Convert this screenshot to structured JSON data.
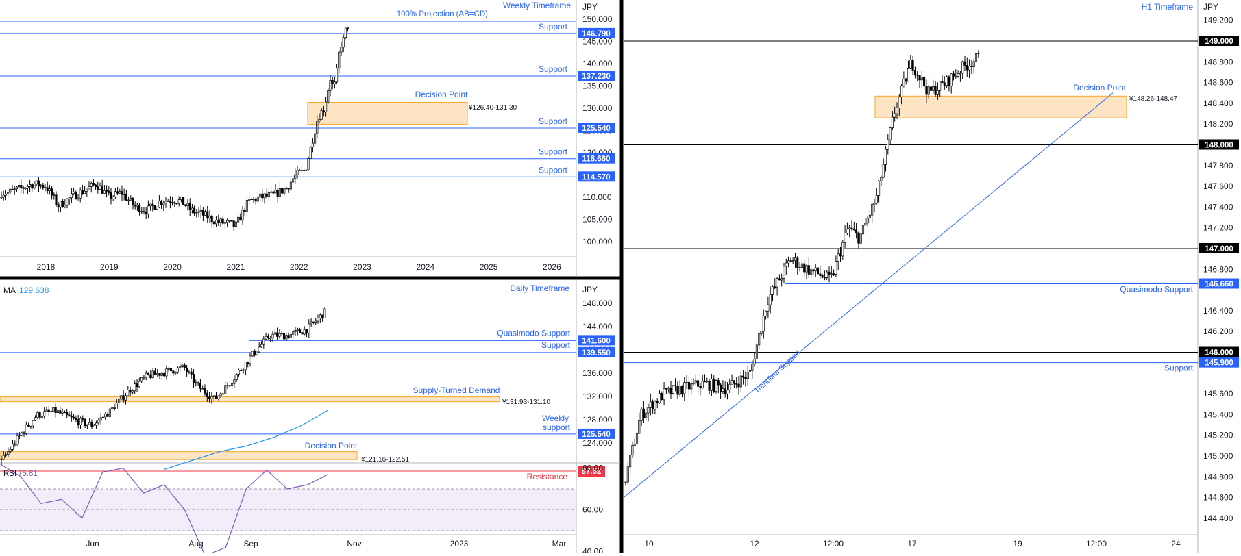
{
  "currency": "JPY",
  "weekly": {
    "timeframe_label": "Weekly Timeframe",
    "projection_label": "100% Projection (AB=CD)",
    "y_ticks": [
      "150.000",
      "145.000",
      "140.000",
      "135.000",
      "130.000",
      "125.000",
      "120.000",
      "115.000",
      "110.000",
      "105.000",
      "100.000"
    ],
    "x_ticks": [
      "2018",
      "2019",
      "2020",
      "2021",
      "2022",
      "2023",
      "2024",
      "2025",
      "2026"
    ],
    "levels": [
      {
        "label": "Support",
        "value": "146.790"
      },
      {
        "label": "Support",
        "value": "137.230"
      },
      {
        "label": "Support",
        "value": "125.540"
      },
      {
        "label": "Support",
        "value": "118.660"
      },
      {
        "label": "Support",
        "value": "114.570"
      }
    ],
    "zone": {
      "label": "Decision Point",
      "range": "¥126.40-131.30"
    }
  },
  "daily": {
    "timeframe_label": "Daily Timeframe",
    "ma_label": "MA",
    "ma_value": "129.638",
    "y_ticks": [
      "148.000",
      "144.000",
      "140.000",
      "136.000",
      "132.000",
      "128.000",
      "124.000"
    ],
    "x_ticks": [
      "Jun",
      "Aug",
      "Sep",
      "Nov",
      "2023",
      "Mar"
    ],
    "levels": [
      {
        "label": "Quasimodo Support",
        "value": "141.600"
      },
      {
        "label": "Support",
        "value": "139.550"
      },
      {
        "label_line1": "Weekly",
        "label_line2": "support",
        "value": "125.540"
      }
    ],
    "zones": [
      {
        "label": "Supply-Turned Demand",
        "range": "¥131.93-131.10"
      },
      {
        "label": "Decision Point",
        "range": "¥121.16-122.51"
      }
    ],
    "rsi": {
      "label": "RSI",
      "value": "76.81",
      "resistance_label": "Resistance",
      "resistance_value": "87.52",
      "y_ticks": [
        "80.00",
        "60.00",
        "40.00"
      ]
    }
  },
  "hourly": {
    "timeframe_label": "H1 Timeframe",
    "y_ticks": [
      "149.200",
      "148.800",
      "148.600",
      "148.400",
      "148.200",
      "147.800",
      "147.600",
      "147.400",
      "147.200",
      "146.800",
      "146.400",
      "146.200",
      "145.600",
      "145.400",
      "145.200",
      "145.000",
      "144.800",
      "144.600",
      "144.400"
    ],
    "x_ticks": [
      "10",
      "12",
      "12:00",
      "17",
      "19",
      "12:00",
      "24"
    ],
    "round_levels": [
      "149.000",
      "148.000",
      "147.000",
      "146.000"
    ],
    "levels": [
      {
        "label": "Quasimodo Support",
        "value": "146.660"
      },
      {
        "label": "Support",
        "value": "145.900"
      }
    ],
    "zone": {
      "label": "Decision Point",
      "range": "¥148.26-148.47"
    },
    "trendline_label": "Trendline Support"
  },
  "colors": {
    "accent": "#2962ff",
    "zone_fill": "#fde5c4",
    "zone_border": "#f5a623",
    "rsi": "#7e57c2",
    "resistance": "#f23645",
    "candle": "#000000",
    "ma": "#2196f3"
  },
  "chart_data": [
    {
      "type": "line",
      "title": "Weekly Timeframe",
      "ylabel": "JPY",
      "ylim": [
        96,
        151
      ],
      "x_range": [
        2017.4,
        2026.7
      ],
      "x": [
        2017.4,
        2017.6,
        2017.8,
        2018.0,
        2018.2,
        2018.4,
        2018.6,
        2018.8,
        2019.0,
        2019.2,
        2019.4,
        2019.6,
        2019.8,
        2020.0,
        2020.15,
        2020.3,
        2020.5,
        2020.7,
        2020.9,
        2021.0,
        2021.2,
        2021.4,
        2021.6,
        2021.8,
        2021.95,
        2022.1,
        2022.2,
        2022.3,
        2022.4,
        2022.5,
        2022.55,
        2022.6,
        2022.65,
        2022.7,
        2022.75,
        2022.8
      ],
      "values": [
        111,
        112,
        113,
        112.5,
        108,
        110,
        111.5,
        113,
        110,
        111,
        108,
        107,
        109,
        109.5,
        109,
        107,
        106,
        104.5,
        104,
        103.5,
        109,
        110,
        110.5,
        112,
        115,
        116,
        122,
        128,
        130,
        137,
        134,
        138,
        144,
        145,
        148,
        149.5
      ],
      "levels": [
        146.79,
        137.23,
        125.54,
        118.66,
        114.57
      ],
      "zone": [
        126.4,
        131.3
      ]
    },
    {
      "type": "line",
      "title": "Daily Timeframe",
      "ylabel": "JPY",
      "ylim": [
        120.5,
        150
      ],
      "x_range": [
        0,
        9.4
      ],
      "x": [
        0,
        0.3,
        0.6,
        0.9,
        1.2,
        1.5,
        1.8,
        2.1,
        2.4,
        2.7,
        3.0,
        3.2,
        3.5,
        3.8,
        4.1,
        4.4,
        4.7,
        5.0,
        5.3
      ],
      "values": [
        120.5,
        125,
        128.8,
        129.5,
        128,
        127,
        129.5,
        133,
        135.5,
        136.2,
        137,
        134,
        131.5,
        135,
        139,
        142.5,
        142.5,
        143.5,
        146.5
      ],
      "ma": [
        119.5,
        121,
        122.5,
        123.5,
        125,
        127,
        129.6
      ],
      "levels": [
        141.6,
        139.55,
        125.54
      ],
      "zones": [
        [
          131.1,
          131.93
        ],
        [
          121.16,
          122.51
        ]
      ]
    },
    {
      "type": "line",
      "title": "RSI",
      "ylim": [
        28,
        90
      ],
      "values": [
        82,
        76,
        63,
        65,
        56,
        78,
        80,
        68,
        72,
        60,
        38,
        42,
        70,
        79,
        70,
        72,
        77
      ],
      "current": 76.81,
      "resistance": 87.52
    },
    {
      "type": "line",
      "title": "H1 Timeframe",
      "ylabel": "JPY",
      "ylim": [
        144.3,
        149.3
      ],
      "x_range": [
        0,
        10
      ],
      "x": [
        0,
        0.3,
        0.7,
        1.0,
        1.4,
        1.8,
        2.2,
        2.5,
        2.9,
        3.2,
        3.6,
        3.9,
        4.1,
        4.4,
        4.7,
        5.0,
        5.3,
        5.6,
        5.9,
        6.2
      ],
      "values": [
        144.7,
        145.4,
        145.6,
        145.65,
        145.7,
        145.65,
        145.8,
        146.5,
        146.9,
        146.8,
        146.7,
        147.2,
        147.1,
        147.5,
        148.3,
        148.8,
        148.5,
        148.6,
        148.75,
        148.85
      ],
      "round_levels": [
        149,
        148,
        147,
        146
      ],
      "levels": [
        146.66,
        145.9
      ],
      "zone": [
        148.26,
        148.47
      ],
      "trendline": [
        [
          0,
          144.6
        ],
        [
          8.5,
          148.5
        ]
      ]
    }
  ]
}
